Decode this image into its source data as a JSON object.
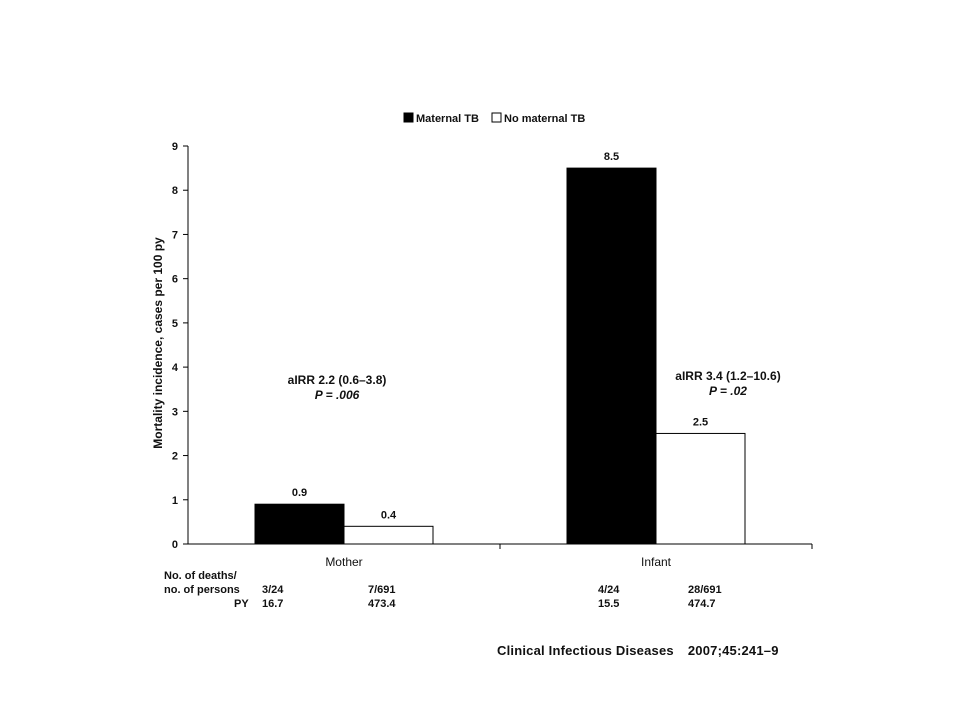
{
  "chart_data": {
    "type": "bar",
    "ylabel": "Mortality incidence, cases per 100 py",
    "ylim": [
      0,
      9
    ],
    "yticks": [
      "0",
      "1",
      "2",
      "3",
      "4",
      "5",
      "6",
      "7",
      "8",
      "9"
    ],
    "categories": [
      "Mother",
      "Infant"
    ],
    "series": [
      {
        "name": "Maternal TB",
        "values": [
          0.9,
          8.5
        ],
        "labels": [
          "0.9",
          "8.5"
        ],
        "color": "#000000"
      },
      {
        "name": "No maternal TB",
        "values": [
          0.4,
          2.5
        ],
        "labels": [
          "0.4",
          "2.5"
        ],
        "color": "#ffffff"
      }
    ],
    "legend_position": "top",
    "annotations": [
      {
        "line1": "aIRR 2.2 (0.6–3.8)",
        "line2": "P = .006"
      },
      {
        "line1": "aIRR 3.4 (1.2–10.6)",
        "line2": "P = .02"
      }
    ]
  },
  "table": {
    "row1_label_line1": "No. of deaths/",
    "row1_label_line2": "no. of persons",
    "row2_label": "PY",
    "deaths": [
      "3/24",
      "7/691",
      "4/24",
      "28/691"
    ],
    "py": [
      "16.7",
      "473.4",
      "15.5",
      "474.7"
    ]
  },
  "citation": {
    "journal": "Clinical Infectious Diseases",
    "ref": "2007;45:241–9"
  }
}
